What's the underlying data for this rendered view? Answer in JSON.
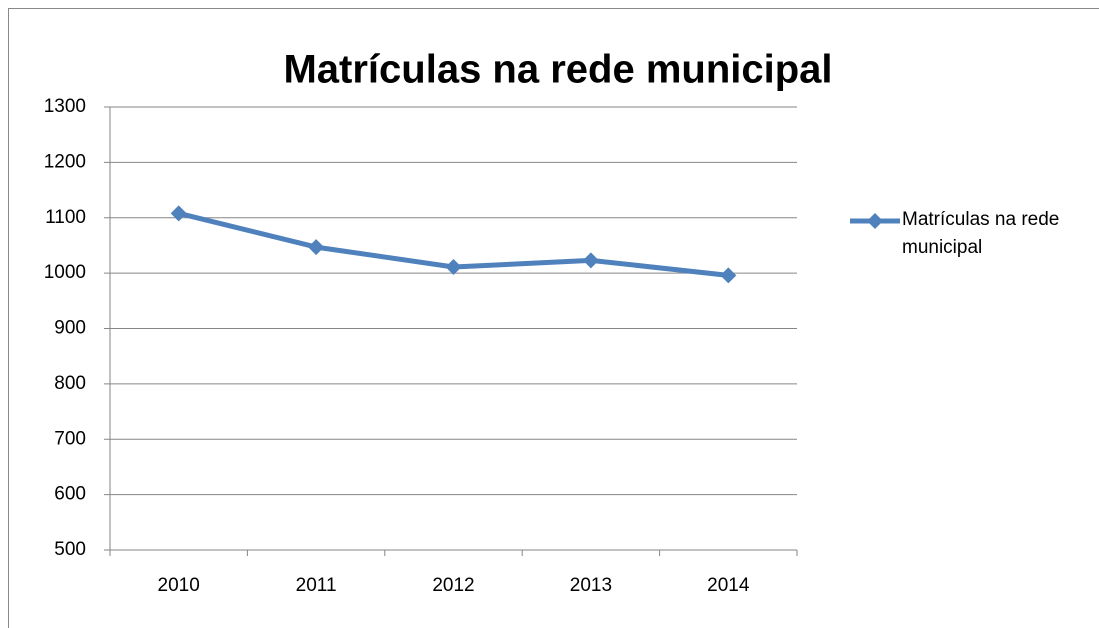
{
  "chart_data": {
    "type": "line",
    "title": "Matrículas na rede municipal",
    "categories": [
      "2010",
      "2011",
      "2012",
      "2013",
      "2014"
    ],
    "series": [
      {
        "name": "Matrículas na rede municipal",
        "color": "#4f81bd",
        "values": [
          1108,
          1047,
          1011,
          1023,
          996
        ]
      }
    ],
    "ylim": [
      500,
      1300
    ],
    "yticks": [
      500,
      600,
      700,
      800,
      900,
      1000,
      1100,
      1200,
      1300
    ],
    "grid": true,
    "legend": "right"
  }
}
